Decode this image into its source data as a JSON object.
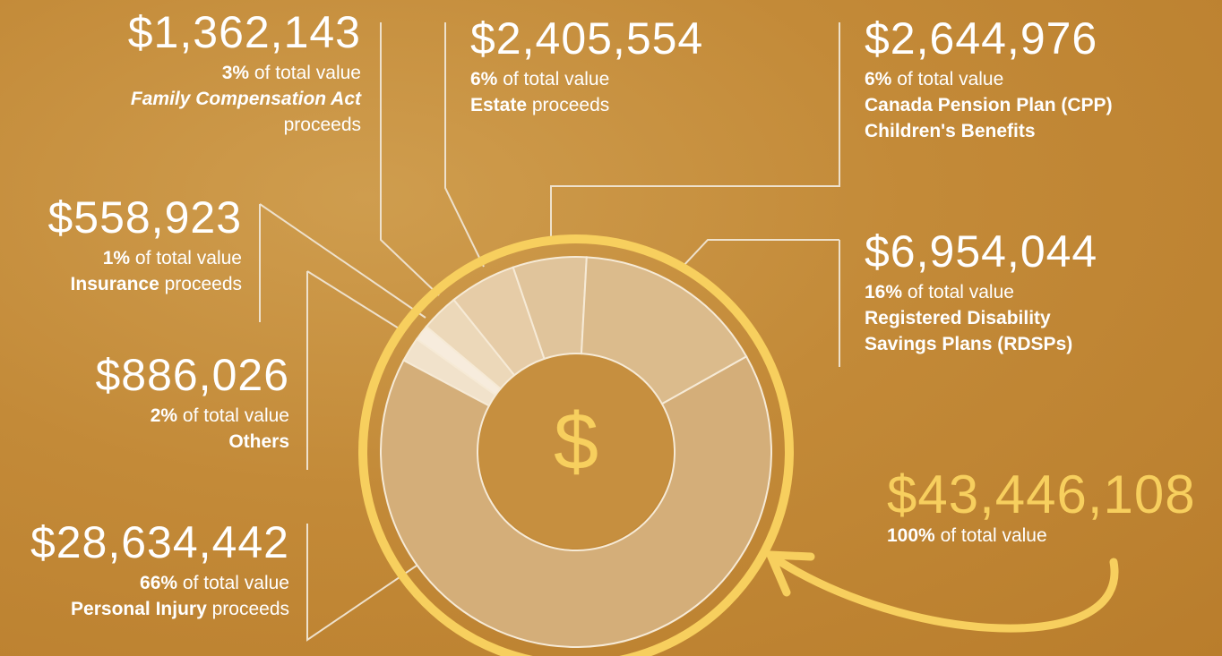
{
  "chart_data": {
    "type": "donut",
    "categories": [
      "Others",
      "Insurance",
      "Family Compensation Act",
      "Estate",
      "Canada Pension Plan (CPP) Children's Benefits",
      "Registered Disability Savings Plans (RDSPs)",
      "Personal Injury"
    ],
    "category_suffixes": [
      null,
      "proceeds",
      "proceeds",
      "proceeds",
      null,
      null,
      "proceeds"
    ],
    "values": [
      886026,
      558923,
      1362143,
      2405554,
      2644976,
      6954044,
      28634442
    ],
    "value_labels": [
      "$886,026",
      "$558,923",
      "$1,362,143",
      "$2,405,554",
      "$2,644,976",
      "$6,954,044",
      "$28,634,442"
    ],
    "share_labels": [
      "2%",
      "1%",
      "3%",
      "6%",
      "6%",
      "16%",
      "66%"
    ],
    "share_text": "of total value",
    "colors": [
      "#f1e2cb",
      "#f7ecdd",
      "#ecd8b9",
      "#e6cca7",
      "#e0c49b",
      "#dbbb8c",
      "#d4ae79"
    ],
    "total": 43446108,
    "total_label": "$43,446,108",
    "total_share_label": "100%",
    "center_symbol": "$"
  }
}
